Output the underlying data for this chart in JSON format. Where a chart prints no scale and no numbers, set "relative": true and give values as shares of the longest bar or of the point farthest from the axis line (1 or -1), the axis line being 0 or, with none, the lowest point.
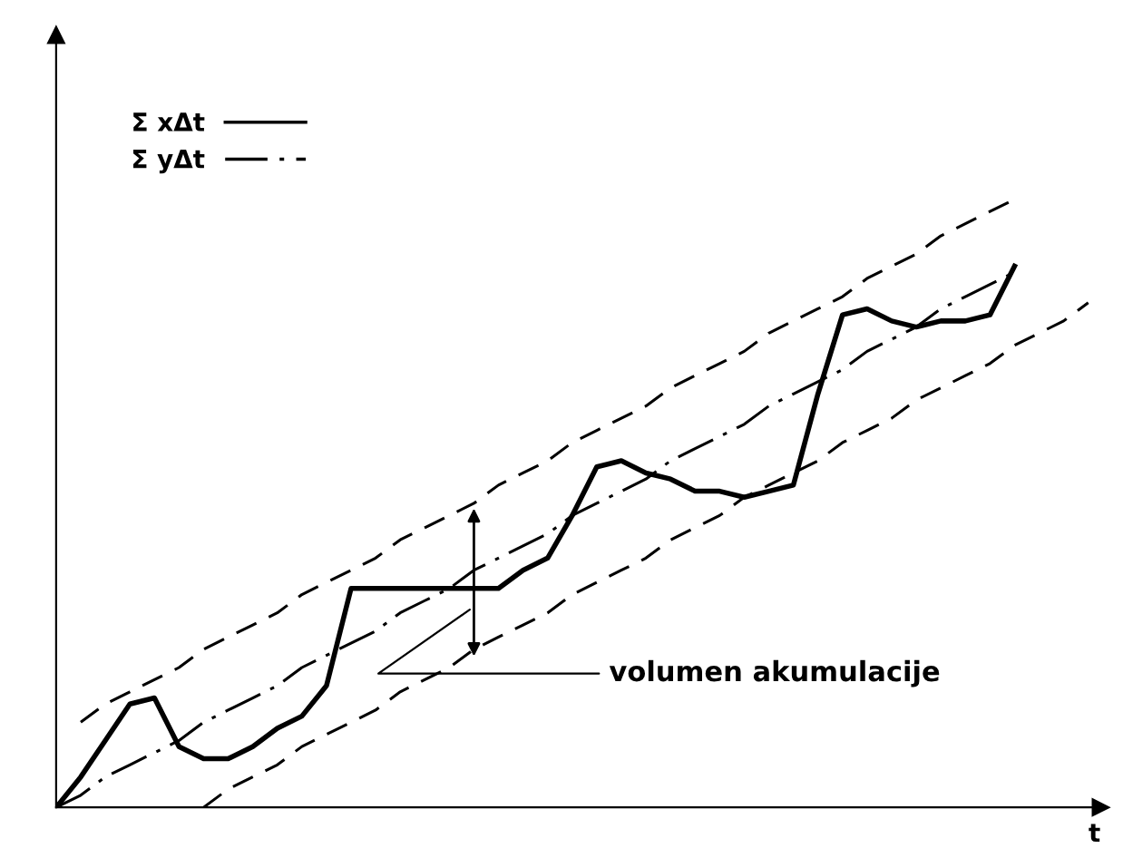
{
  "chart_data": {
    "type": "line",
    "relative": true,
    "xlabel": "t",
    "legend": "top left",
    "marker": "none",
    "categories": [
      null,
      null,
      null,
      null,
      null,
      null,
      null,
      null,
      null,
      null,
      null,
      null,
      null,
      null,
      null,
      null,
      null,
      null,
      null,
      null,
      null,
      null,
      null,
      null,
      null,
      null,
      null,
      null,
      null,
      null,
      null,
      null,
      null,
      null,
      null,
      null,
      null,
      null,
      null,
      null,
      null,
      null,
      null
    ],
    "series": [
      {
        "name": "Σ xΔt",
        "color": "#000000",
        "line_style": "solid",
        "values": [
          0,
          0.05,
          0.11,
          0.17,
          0.18,
          0.1,
          0.08,
          0.08,
          0.1,
          0.13,
          0.15,
          0.2,
          0.36,
          0.36,
          0.36,
          0.36,
          0.36,
          0.36,
          0.36,
          0.39,
          0.41,
          0.48,
          0.56,
          0.57,
          0.55,
          0.54,
          0.52,
          0.52,
          0.51,
          0.52,
          0.53,
          0.68,
          0.81,
          0.82,
          0.8,
          0.79,
          0.8,
          0.8,
          0.81,
          0.89,
          null,
          null,
          null
        ]
      },
      {
        "name": "Σ yΔt",
        "color": "#000000",
        "line_style": "dashdot",
        "values": [
          0,
          0.02,
          0.05,
          0.07,
          0.09,
          0.11,
          0.14,
          0.16,
          0.18,
          0.2,
          0.23,
          0.25,
          0.27,
          0.29,
          0.32,
          0.34,
          0.36,
          0.39,
          0.41,
          0.43,
          0.45,
          0.48,
          0.5,
          0.52,
          0.54,
          0.57,
          0.59,
          0.61,
          0.63,
          0.66,
          0.68,
          0.7,
          0.72,
          0.75,
          0.77,
          0.79,
          0.82,
          0.84,
          0.86,
          0.88,
          null,
          null,
          null
        ]
      },
      {
        "color": "#000000",
        "line_style": "dashed",
        "values": [
          null,
          0.14,
          0.17,
          0.19,
          0.21,
          0.23,
          0.26,
          0.28,
          0.3,
          0.32,
          0.35,
          0.37,
          0.39,
          0.41,
          0.44,
          0.46,
          0.48,
          0.5,
          0.53,
          0.55,
          0.57,
          0.6,
          0.62,
          0.64,
          0.66,
          0.69,
          0.71,
          0.73,
          0.75,
          0.78,
          0.8,
          0.82,
          0.84,
          0.87,
          0.89,
          0.91,
          0.94,
          0.96,
          0.98,
          1.0,
          null,
          null,
          null
        ]
      },
      {
        "color": "#000000",
        "line_style": "dashed",
        "values": [
          null,
          null,
          null,
          null,
          null,
          null,
          0.0,
          0.03,
          0.05,
          0.07,
          0.1,
          0.12,
          0.14,
          0.16,
          0.19,
          0.21,
          0.23,
          0.26,
          0.28,
          0.3,
          0.32,
          0.35,
          0.37,
          0.39,
          0.41,
          0.44,
          0.46,
          0.48,
          0.51,
          0.53,
          0.55,
          0.57,
          0.6,
          0.62,
          0.64,
          0.67,
          0.69,
          0.71,
          0.73,
          0.76,
          0.78,
          0.8,
          0.83
        ]
      }
    ],
    "annotations": [
      "volumen akumulacije"
    ]
  }
}
